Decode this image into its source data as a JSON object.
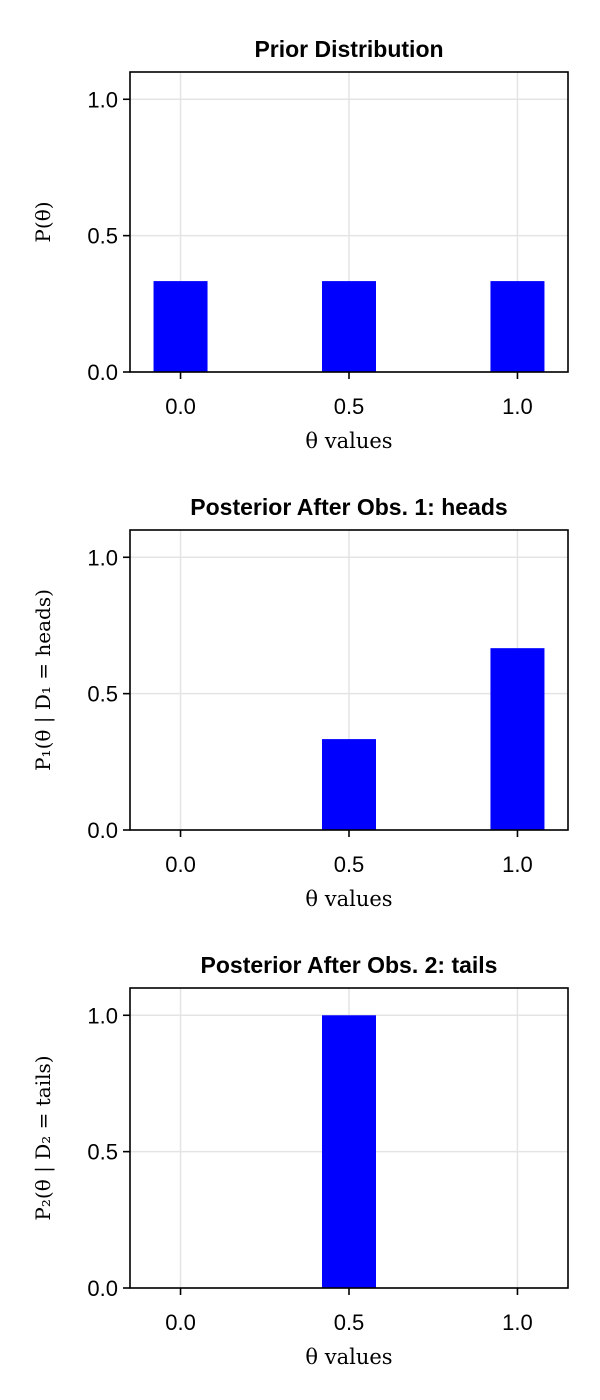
{
  "chart_data": [
    {
      "type": "bar",
      "title": "Prior Distribution",
      "xlabel": "θ values",
      "ylabel": "P(θ)",
      "categories": [
        "0.0",
        "0.5",
        "1.0"
      ],
      "x": [
        0.0,
        0.5,
        1.0
      ],
      "values": [
        0.3333,
        0.3333,
        0.3333
      ],
      "xticks": [
        "0.0",
        "0.5",
        "1.0"
      ],
      "yticks": [
        "0.0",
        "0.5",
        "1.0"
      ],
      "ylim": [
        0,
        1.1
      ],
      "xlim": [
        -0.15,
        1.15
      ],
      "color": "#0000ff",
      "grid": true
    },
    {
      "type": "bar",
      "title": "Posterior After Obs. 1: heads",
      "xlabel": "θ values",
      "ylabel": "P₁(θ | D₁ = heads)",
      "categories": [
        "0.0",
        "0.5",
        "1.0"
      ],
      "x": [
        0.0,
        0.5,
        1.0
      ],
      "values": [
        0.0,
        0.3333,
        0.6667
      ],
      "xticks": [
        "0.0",
        "0.5",
        "1.0"
      ],
      "yticks": [
        "0.0",
        "0.5",
        "1.0"
      ],
      "ylim": [
        0,
        1.1
      ],
      "xlim": [
        -0.15,
        1.15
      ],
      "color": "#0000ff",
      "grid": true
    },
    {
      "type": "bar",
      "title": "Posterior After Obs. 2: tails",
      "xlabel": "θ values",
      "ylabel": "P₂(θ | D₂ = tails)",
      "categories": [
        "0.0",
        "0.5",
        "1.0"
      ],
      "x": [
        0.0,
        0.5,
        1.0
      ],
      "values": [
        0.0,
        1.0,
        0.0
      ],
      "xticks": [
        "0.0",
        "0.5",
        "1.0"
      ],
      "yticks": [
        "0.0",
        "0.5",
        "1.0"
      ],
      "ylim": [
        0,
        1.1
      ],
      "xlim": [
        -0.15,
        1.15
      ],
      "color": "#0000ff",
      "grid": true
    }
  ]
}
